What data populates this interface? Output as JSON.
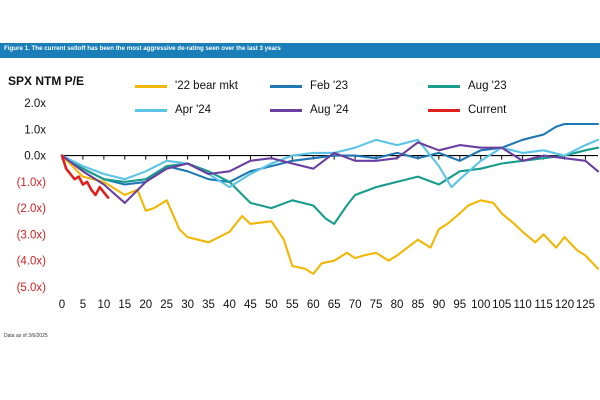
{
  "banner": {
    "text": "Figure 1. The current selloff has been the most aggressive de-rating seen over the last 3 years"
  },
  "footnote": "Data as of 3/6/2025",
  "chart_data": {
    "type": "line",
    "ylabel": "SPX NTM P/E",
    "xlim": [
      0,
      128
    ],
    "ylim": [
      -5,
      2
    ],
    "x_ticks": [
      0,
      5,
      10,
      15,
      20,
      25,
      30,
      35,
      40,
      45,
      50,
      55,
      60,
      65,
      70,
      75,
      80,
      85,
      90,
      95,
      100,
      105,
      110,
      115,
      120,
      125
    ],
    "y_ticks": [
      {
        "value": 2,
        "label": "2.0x"
      },
      {
        "value": 1,
        "label": "1.0x"
      },
      {
        "value": 0,
        "label": "0.0x"
      },
      {
        "value": -1,
        "label": "(1.0x)"
      },
      {
        "value": -2,
        "label": "(2.0x)"
      },
      {
        "value": -3,
        "label": "(3.0x)"
      },
      {
        "value": -4,
        "label": "(4.0x)"
      },
      {
        "value": -5,
        "label": "(5.0x)"
      }
    ],
    "legend_position": "top",
    "series": [
      {
        "name": "'22 bear mkt",
        "color": "#f2b705",
        "x": [
          0,
          5,
          10,
          15,
          18,
          20,
          22,
          25,
          28,
          30,
          35,
          40,
          43,
          45,
          50,
          53,
          55,
          58,
          60,
          62,
          65,
          68,
          70,
          72,
          75,
          78,
          80,
          85,
          88,
          90,
          92,
          95,
          97,
          100,
          103,
          105,
          108,
          110,
          113,
          115,
          118,
          120,
          123,
          125,
          128
        ],
        "y": [
          0,
          -0.8,
          -1.0,
          -1.5,
          -1.3,
          -2.1,
          -2.0,
          -1.7,
          -2.8,
          -3.1,
          -3.3,
          -2.9,
          -2.3,
          -2.6,
          -2.5,
          -3.2,
          -4.2,
          -4.3,
          -4.5,
          -4.1,
          -4.0,
          -3.7,
          -3.9,
          -3.8,
          -3.7,
          -4.0,
          -3.8,
          -3.2,
          -3.5,
          -2.8,
          -2.6,
          -2.2,
          -1.9,
          -1.7,
          -1.8,
          -2.2,
          -2.6,
          -2.9,
          -3.3,
          -3.0,
          -3.5,
          -3.1,
          -3.6,
          -3.8,
          -4.3
        ]
      },
      {
        "name": "Feb '23",
        "color": "#1f77b4",
        "x": [
          0,
          5,
          10,
          15,
          20,
          25,
          30,
          35,
          40,
          45,
          50,
          55,
          60,
          65,
          70,
          75,
          80,
          85,
          90,
          95,
          100,
          105,
          110,
          115,
          118,
          120,
          125,
          128
        ],
        "y": [
          0,
          -0.5,
          -0.9,
          -1.1,
          -1.0,
          -0.4,
          -0.6,
          -0.9,
          -1.0,
          -0.6,
          -0.4,
          -0.2,
          -0.1,
          0.0,
          0.0,
          -0.1,
          0.1,
          -0.1,
          0.1,
          -0.2,
          0.2,
          0.3,
          0.6,
          0.8,
          1.1,
          1.2,
          1.2,
          1.2
        ]
      },
      {
        "name": "Aug '23",
        "color": "#1a9c8c",
        "x": [
          0,
          5,
          10,
          15,
          20,
          25,
          30,
          35,
          40,
          45,
          50,
          55,
          60,
          63,
          65,
          68,
          70,
          75,
          80,
          85,
          90,
          92,
          95,
          100,
          105,
          110,
          115,
          120,
          125,
          128
        ],
        "y": [
          0,
          -0.5,
          -0.9,
          -1.0,
          -0.9,
          -0.4,
          -0.3,
          -0.6,
          -1.0,
          -1.8,
          -2.0,
          -1.7,
          -1.9,
          -2.4,
          -2.6,
          -1.9,
          -1.5,
          -1.2,
          -1.0,
          -0.8,
          -1.1,
          -0.9,
          -0.6,
          -0.5,
          -0.3,
          -0.2,
          -0.1,
          0.0,
          0.2,
          0.3
        ]
      },
      {
        "name": "Apr '24",
        "color": "#5bc4e6",
        "x": [
          0,
          5,
          10,
          15,
          20,
          25,
          30,
          35,
          40,
          45,
          50,
          55,
          60,
          65,
          70,
          75,
          80,
          85,
          90,
          93,
          95,
          100,
          105,
          110,
          115,
          120,
          125,
          128
        ],
        "y": [
          0,
          -0.4,
          -0.7,
          -0.9,
          -0.6,
          -0.2,
          -0.3,
          -0.7,
          -1.2,
          -0.7,
          -0.3,
          0.0,
          0.1,
          0.1,
          0.3,
          0.6,
          0.4,
          0.6,
          -0.4,
          -1.2,
          -0.9,
          -0.2,
          0.3,
          0.1,
          0.2,
          0.0,
          0.4,
          0.6
        ]
      },
      {
        "name": "Aug '24",
        "color": "#6a3fa0",
        "x": [
          0,
          5,
          10,
          15,
          20,
          25,
          30,
          35,
          40,
          45,
          50,
          55,
          60,
          65,
          70,
          75,
          80,
          85,
          90,
          95,
          100,
          105,
          110,
          115,
          120,
          125,
          128
        ],
        "y": [
          0,
          -0.6,
          -1.1,
          -1.8,
          -1.0,
          -0.5,
          -0.3,
          -0.7,
          -0.6,
          -0.2,
          -0.1,
          -0.3,
          -0.5,
          0.1,
          -0.2,
          -0.2,
          -0.1,
          0.5,
          0.2,
          0.4,
          0.3,
          0.3,
          -0.2,
          0.0,
          -0.1,
          -0.2,
          -0.6
        ]
      },
      {
        "name": "Current",
        "color": "#e0201c",
        "x": [
          0,
          1,
          2,
          3,
          4,
          5,
          6,
          7,
          8,
          9,
          10,
          11
        ],
        "y": [
          0,
          -0.5,
          -0.7,
          -0.9,
          -0.8,
          -1.1,
          -1.0,
          -1.3,
          -1.5,
          -1.2,
          -1.4,
          -1.6
        ]
      }
    ]
  }
}
